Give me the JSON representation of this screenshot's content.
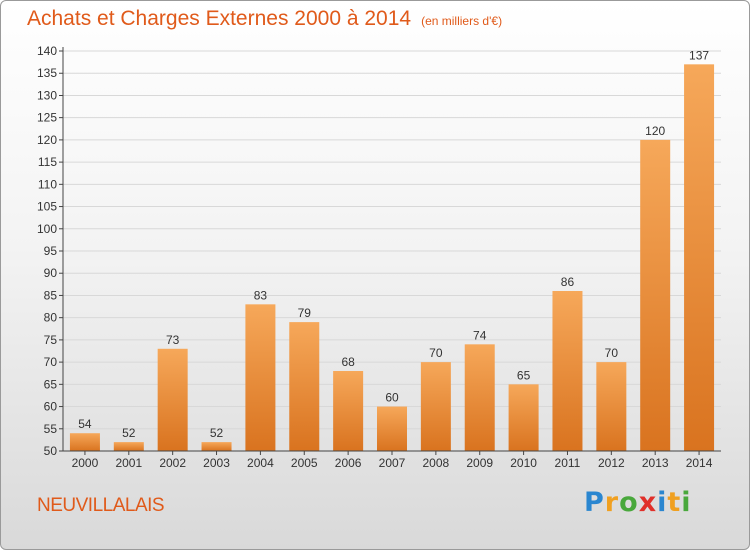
{
  "title": "Achats et Charges Externes 2000 à 2014",
  "unit": "(en milliers d'€)",
  "commune": "NEUVILLALAIS",
  "logo": {
    "letters": [
      "P",
      "r",
      "o",
      "x",
      "i",
      "t",
      "i"
    ],
    "colors": [
      "#2a86d0",
      "#f0a020",
      "#49a83c",
      "#e0302a",
      "#2a86d0",
      "#f0a020",
      "#49a83c"
    ]
  },
  "chart_data": {
    "type": "bar",
    "categories": [
      "2000",
      "2001",
      "2002",
      "2003",
      "2004",
      "2005",
      "2006",
      "2007",
      "2008",
      "2009",
      "2010",
      "2011",
      "2012",
      "2013",
      "2014"
    ],
    "values": [
      54,
      52,
      73,
      52,
      83,
      79,
      68,
      60,
      70,
      74,
      65,
      86,
      70,
      120,
      137
    ],
    "ylim": [
      50,
      140
    ],
    "yticks": [
      50,
      55,
      60,
      65,
      70,
      75,
      80,
      85,
      90,
      95,
      100,
      105,
      110,
      115,
      120,
      125,
      130,
      135,
      140
    ],
    "colors": {
      "bar_light": "#f6a85a",
      "bar_dark": "#d9731f",
      "label": "#333333",
      "grid": "#d8d8d8"
    }
  }
}
